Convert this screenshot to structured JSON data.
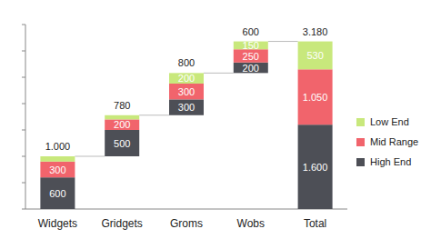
{
  "chart_data": {
    "type": "waterfall",
    "categories": [
      "Widgets",
      "Gridgets",
      "Groms",
      "Wobs",
      "Total"
    ],
    "series": [
      {
        "name": "High End",
        "color": "#4d4f56",
        "values": [
          600,
          500,
          300,
          200,
          1600
        ],
        "value_labels": [
          "600",
          "500",
          "300",
          "200",
          "1.600"
        ]
      },
      {
        "name": "Mid Range",
        "color": "#f1646c",
        "values": [
          300,
          200,
          300,
          250,
          1050
        ],
        "value_labels": [
          "300",
          "200",
          "300",
          "250",
          "1.050"
        ]
      },
      {
        "name": "Low End",
        "color": "#c8e87c",
        "values": [
          100,
          80,
          200,
          150,
          530
        ],
        "value_labels": [
          null,
          null,
          "200",
          "150",
          "530"
        ]
      }
    ],
    "totals": [
      1000,
      780,
      800,
      600,
      3180
    ],
    "total_labels": [
      "1.000",
      "780",
      "800",
      "600",
      "3.180"
    ],
    "ylim": [
      0,
      3500
    ],
    "yticks": [
      0,
      500,
      1000,
      1500,
      2000,
      2500,
      3000,
      3500
    ],
    "stacked": true,
    "data_labels": true,
    "legend": "right",
    "tick_labels": "x",
    "grid": false
  }
}
